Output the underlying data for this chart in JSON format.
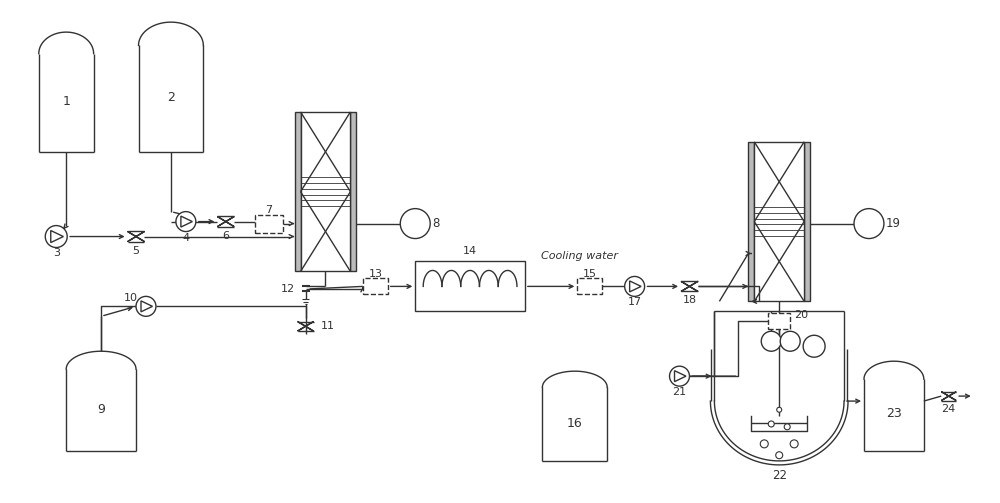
{
  "bg": "#ffffff",
  "lc": "#333333",
  "figsize": [
    10.0,
    5.03
  ],
  "dpi": 100,
  "xlim": [
    0,
    100
  ],
  "ylim": [
    0,
    50
  ]
}
